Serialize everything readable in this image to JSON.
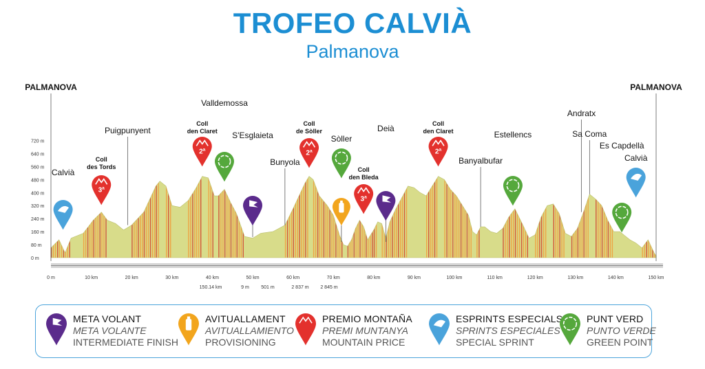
{
  "title": "TROFEO CALVIÀ",
  "subtitle": "Palmanova",
  "colors": {
    "brand_blue": "#1c8ed3",
    "meta_volant": "#5b2b8c",
    "avituallament": "#f2a51d",
    "premio_montana": "#e3312d",
    "esprints": "#4aa3db",
    "punt_verd": "#55a83c",
    "profile_fill": "#d8dc8a",
    "profile_stripe_orange": "#f29a38",
    "profile_stripe_red": "#d2402a"
  },
  "chart_data": {
    "type": "area",
    "xlabel": "",
    "ylabel": "",
    "xlim": [
      0,
      150
    ],
    "ylim": [
      0,
      760
    ],
    "x_ticks": [
      0,
      10,
      20,
      30,
      40,
      50,
      60,
      70,
      80,
      90,
      100,
      110,
      120,
      130,
      140,
      150
    ],
    "x_tick_labels": [
      "0 m",
      "10 km",
      "20 km",
      "30 km",
      "40 km",
      "50 km",
      "60 km",
      "70 km",
      "80 km",
      "90 km",
      "100 km",
      "110 km",
      "120 km",
      "130 km",
      "140 km",
      "150 km"
    ],
    "y_ticks": [
      0,
      80,
      160,
      240,
      320,
      400,
      480,
      560,
      640,
      720
    ],
    "y_tick_labels": [
      "0 m",
      "80 m",
      "160 m",
      "240 m",
      "320 m",
      "400 m",
      "480 m",
      "560 m",
      "640 m",
      "720 m"
    ],
    "series": [
      {
        "x": [
          0,
          2,
          3.5,
          5,
          8,
          10.5,
          12.5,
          14,
          16,
          18,
          20,
          23,
          26,
          27,
          28.5,
          30,
          32,
          34,
          36,
          37.5,
          39,
          40.5,
          41.5,
          43,
          44.5,
          46,
          48,
          50,
          52,
          55,
          58,
          60,
          61.5,
          63,
          64,
          65,
          66.5,
          68.5,
          70,
          71.5,
          72.5,
          73.5,
          74.5,
          75.5,
          76.5,
          77.5,
          78.5,
          80,
          81,
          82,
          83,
          84,
          85.5,
          87,
          88.5,
          90,
          91.5,
          93,
          94.5,
          96,
          97.5,
          99,
          100.5,
          102,
          103.5,
          104.5,
          105.5,
          106.5,
          107.5,
          109,
          110.5,
          112,
          113.5,
          115,
          117,
          118.5,
          120,
          121.5,
          123,
          124.5,
          126,
          127.5,
          129,
          130.5,
          132,
          133.5,
          135,
          136.5,
          138,
          139.5,
          141,
          142,
          143.5,
          145,
          146.5,
          148,
          149.5,
          150
        ],
        "y": [
          60,
          110,
          30,
          120,
          150,
          230,
          280,
          230,
          210,
          170,
          200,
          280,
          440,
          470,
          440,
          320,
          310,
          350,
          430,
          500,
          490,
          380,
          380,
          420,
          340,
          270,
          130,
          120,
          150,
          160,
          200,
          300,
          380,
          460,
          500,
          480,
          380,
          320,
          260,
          140,
          80,
          70,
          110,
          180,
          230,
          190,
          110,
          170,
          220,
          210,
          120,
          220,
          300,
          370,
          440,
          430,
          400,
          380,
          440,
          500,
          480,
          420,
          380,
          320,
          260,
          160,
          140,
          190,
          190,
          160,
          150,
          180,
          250,
          300,
          200,
          120,
          140,
          250,
          320,
          330,
          270,
          150,
          130,
          180,
          280,
          390,
          360,
          320,
          230,
          160,
          160,
          140,
          110,
          90,
          60,
          110,
          30,
          10
        ]
      }
    ],
    "location_labels": [
      {
        "km": 0,
        "lines": [
          "PALMANOVA"
        ]
      },
      {
        "km": 3,
        "lines": [
          "Calvià"
        ]
      },
      {
        "km": 12.5,
        "lines": [
          "Coll",
          "des Tords"
        ]
      },
      {
        "km": 19,
        "lines": [
          "Puigpunyent"
        ]
      },
      {
        "km": 37.5,
        "lines": [
          "Coll",
          "den Claret"
        ]
      },
      {
        "km": 43,
        "lines": [
          "Valldemossa"
        ]
      },
      {
        "km": 50,
        "lines": [
          "S'Esglaieta"
        ]
      },
      {
        "km": 58,
        "lines": [
          "Bunyola"
        ]
      },
      {
        "km": 64,
        "lines": [
          "Coll",
          "de Sòller"
        ]
      },
      {
        "km": 72,
        "lines": [
          "Sòller"
        ]
      },
      {
        "km": 77.5,
        "lines": [
          "Coll",
          "den Bleda"
        ]
      },
      {
        "km": 83,
        "lines": [
          "Deià"
        ]
      },
      {
        "km": 96,
        "lines": [
          "Coll",
          "den Claret"
        ]
      },
      {
        "km": 106.5,
        "lines": [
          "Banyalbufar"
        ]
      },
      {
        "km": 114.5,
        "lines": [
          "Estellencs"
        ]
      },
      {
        "km": 131.5,
        "lines": [
          "Andratx"
        ]
      },
      {
        "km": 133.5,
        "lines": [
          "Sa Coma"
        ]
      },
      {
        "km": 141.5,
        "lines": [
          "Es Capdellà"
        ]
      },
      {
        "km": 145,
        "lines": [
          "Calvià"
        ]
      },
      {
        "km": 150,
        "lines": [
          "PALMANOVA"
        ]
      }
    ],
    "markers": [
      {
        "type": "esprint",
        "km": 3
      },
      {
        "type": "montana",
        "km": 12.5,
        "label": "3ª"
      },
      {
        "type": "montana",
        "km": 37.5,
        "label": "2ª"
      },
      {
        "type": "verd",
        "km": 43
      },
      {
        "type": "meta",
        "km": 50
      },
      {
        "type": "montana",
        "km": 64,
        "label": "2ª"
      },
      {
        "type": "verd",
        "km": 72
      },
      {
        "type": "avituallament",
        "km": 72
      },
      {
        "type": "montana",
        "km": 77.5,
        "label": "3ª"
      },
      {
        "type": "meta",
        "km": 83
      },
      {
        "type": "montana",
        "km": 96,
        "label": "2ª"
      },
      {
        "type": "verd",
        "km": 114.5
      },
      {
        "type": "verd",
        "km": 141.5
      },
      {
        "type": "esprint",
        "km": 145
      }
    ],
    "stats": [
      "150.14 km",
      "9 m",
      "501 m",
      "2 837 m",
      "2 845 m"
    ]
  },
  "legend": [
    {
      "key": "meta",
      "lines": [
        "META VOLANT",
        "META VOLANTE",
        "INTERMEDIATE FINISH"
      ]
    },
    {
      "key": "avituallament",
      "lines": [
        "AVITUALLAMENT",
        "AVITUALLAMIENTO",
        "PROVISIONING"
      ]
    },
    {
      "key": "montana",
      "lines": [
        "PREMIO MONTAÑA",
        "PREMI MUNTANYA",
        "MOUNTAIN PRICE"
      ]
    },
    {
      "key": "esprint",
      "lines": [
        "ESPRINTS ESPECIALS",
        "SPRINTS ESPECIALES",
        "SPECIAL SPRINT"
      ]
    },
    {
      "key": "verd",
      "lines": [
        "PUNT VERD",
        "PUNTO VERDE",
        "GREEN POINT"
      ]
    }
  ]
}
